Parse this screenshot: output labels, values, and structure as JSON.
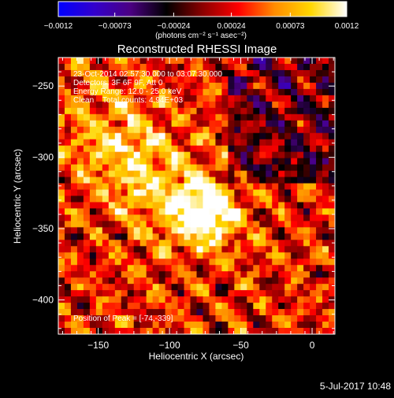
{
  "chart_data": {
    "type": "heatmap",
    "title": "Reconstructed RHESSI Image",
    "xlabel": "Heliocentric X (arcsec)",
    "ylabel": "Heliocentric Y (arcsec)",
    "xlim": [
      -178,
      16
    ],
    "ylim": [
      -424,
      -230
    ],
    "xticks": [
      -150,
      -100,
      -50,
      0
    ],
    "xtick_labels": [
      "−150",
      "−100",
      "−50",
      "0"
    ],
    "yticks": [
      -250,
      -300,
      -350,
      -400
    ],
    "ytick_labels": [
      "−250",
      "−300",
      "−350",
      "−400"
    ],
    "colorbar": {
      "range": [
        -0.0012,
        0.0012
      ],
      "ticks": [
        -0.0012,
        -0.00073,
        -0.00024,
        0.00024,
        0.00073,
        0.0012
      ],
      "tick_labels": [
        "−0.0012",
        "−0.00073",
        "−0.00024",
        "0.00024",
        "0.00073",
        "0.0012"
      ],
      "units_label": "(photons cm⁻² s⁻¹ asec⁻²)",
      "colormap": [
        "#0000ff",
        "#3300cc",
        "#4b0082",
        "#000000",
        "#8b0000",
        "#ff0000",
        "#ff8c00",
        "#ffd700",
        "#ffffff"
      ]
    },
    "peak": {
      "x": -74,
      "y": -339
    },
    "annotations": [
      "23-Oct-2014 02:57:30.000 to 03:07:30.000",
      "Detectors: 3F 6F 9F, Att 0",
      "Energy Range: 12.0 - 25.0 keV",
      "Clean    Total counts: 4.94E+03",
      "Position of Peak = [-74,-339]"
    ]
  },
  "footer": {
    "timestamp": "5-Jul-2017 10:48"
  }
}
